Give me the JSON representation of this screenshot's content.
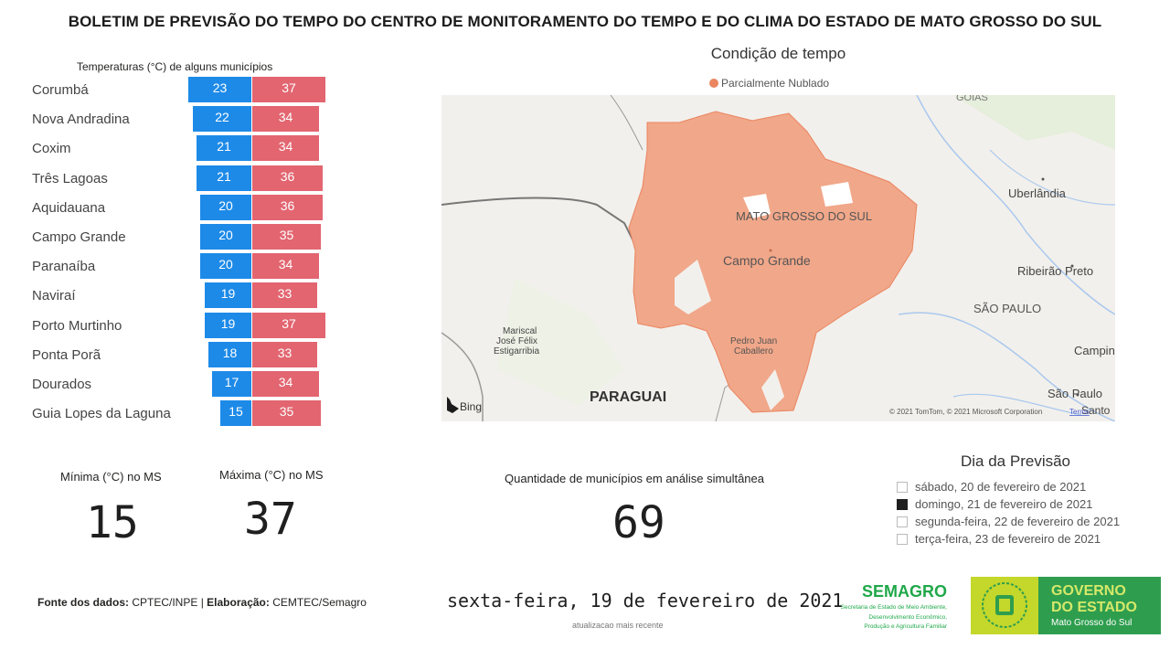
{
  "header": {
    "title": "BOLETIM DE PREVISÃO DO TEMPO DO CENTRO DE MONITORAMENTO DO TEMPO E DO CLIMA DO ESTADO DE MATO GROSSO DO SUL"
  },
  "temperatures": {
    "caption": "Temperaturas (°C) de alguns municípios",
    "rows": [
      {
        "city": "Corumbá",
        "min": "23",
        "max": "37"
      },
      {
        "city": "Nova Andradina",
        "min": "22",
        "max": "34"
      },
      {
        "city": "Coxim",
        "min": "21",
        "max": "34"
      },
      {
        "city": "Três Lagoas",
        "min": "21",
        "max": "36"
      },
      {
        "city": "Aquidauana",
        "min": "20",
        "max": "36"
      },
      {
        "city": "Campo Grande",
        "min": "20",
        "max": "35"
      },
      {
        "city": "Paranaíba",
        "min": "20",
        "max": "34"
      },
      {
        "city": "Naviraí",
        "min": "19",
        "max": "33"
      },
      {
        "city": "Porto Murtinho",
        "min": "19",
        "max": "37"
      },
      {
        "city": "Ponta Porã",
        "min": "18",
        "max": "33"
      },
      {
        "city": "Dourados",
        "min": "17",
        "max": "34"
      },
      {
        "city": "Guia Lopes da Laguna",
        "min": "15",
        "max": "35"
      }
    ],
    "min_color": "#1d8ae8",
    "max_color": "#e26570"
  },
  "map": {
    "title": "Condição de tempo",
    "legend": "Parcialmente Nublado",
    "legend_color": "#ea8560",
    "labels": {
      "state": "MATO GROSSO DO SUL",
      "campo_grande": "Campo Grande",
      "uberlandia": "Uberlândia",
      "ribeirao": "Ribeirão Preto",
      "sao_paulo_state": "SÃO PAULO",
      "campinas": "Campina",
      "sao_paulo_city": "São Paulo",
      "santo": "Santo",
      "paraguai": "PARAGUAI",
      "mariscal_1": "Mariscal",
      "mariscal_2": "José Félix",
      "mariscal_3": "Estigarribia",
      "pedro_1": "Pedro Juan",
      "pedro_2": "Caballero",
      "goias": "GOIÁS"
    },
    "bing": "Bing",
    "copyright": "© 2021 TomTom, © 2021 Microsoft Corporation",
    "terms": "Terms"
  },
  "kpis": {
    "min_label": "Mínima (°C) no MS",
    "min_value": "15",
    "max_label": "Máxima (°C) no MS",
    "max_value": "37",
    "count_label": "Quantidade de municípios em análise simultânea",
    "count_value": "69"
  },
  "forecast_day": {
    "title": "Dia da Previsão",
    "options": [
      {
        "label": "sábado, 20 de fevereiro de 2021",
        "checked": false
      },
      {
        "label": "domingo, 21 de fevereiro de 2021",
        "checked": true
      },
      {
        "label": "segunda-feira, 22 de fevereiro de 2021",
        "checked": false
      },
      {
        "label": "terça-feira, 23 de fevereiro de 2021",
        "checked": false
      }
    ]
  },
  "footer": {
    "source_label": "Fonte dos dados:",
    "source_value": "CPTEC/INPE",
    "separator": "|",
    "elab_label": "Elaboração:",
    "elab_value": "CEMTEC/Semagro",
    "date": "sexta-feira, 19 de fevereiro de 2021",
    "date_sub": "atualizacao mais recente",
    "semagro_name": "SEMAGRO",
    "semagro_desc_1": "Secretaria de Estado de Meio Ambiente,",
    "semagro_desc_2": "Desenvolvimento Econômico,",
    "semagro_desc_3": "Produção e Agricultura Familiar",
    "gov_line1": "GOVERNO",
    "gov_line2": "DO ESTADO",
    "gov_line3": "Mato Grosso do Sul"
  }
}
